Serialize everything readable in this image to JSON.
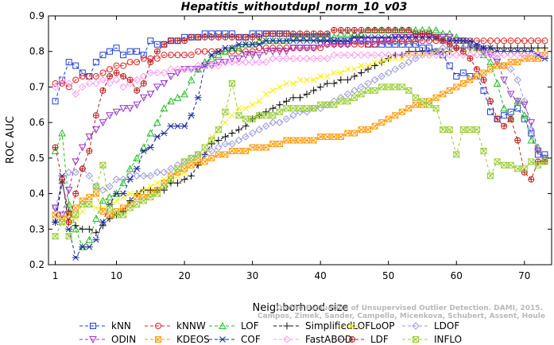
{
  "chart_data": {
    "type": "line",
    "title": "Hepatitis_withoutdupl_norm_10_v03",
    "xlabel": "Neighborhood size",
    "ylabel": "ROC AUC",
    "xlim": [
      0,
      74
    ],
    "ylim": [
      0.2,
      0.9
    ],
    "xticks": [
      1,
      10,
      20,
      30,
      40,
      50,
      60,
      70
    ],
    "yticks": [
      0.2,
      0.3,
      0.4,
      0.5,
      0.6,
      0.7,
      0.8,
      0.9
    ],
    "grid": false,
    "legend_position": "bottom",
    "credit_lines": [
      "Campos, Zimek, Sander, Campello, Micenkova, Schubert, Assent, Houle",
      "On the Evaluation of Unsupervised Outlier Detection. DAMI, 2015."
    ],
    "x": [
      1,
      2,
      3,
      4,
      5,
      6,
      7,
      8,
      9,
      10,
      11,
      12,
      13,
      14,
      15,
      16,
      17,
      18,
      19,
      20,
      21,
      22,
      23,
      24,
      25,
      26,
      27,
      28,
      29,
      30,
      31,
      32,
      33,
      34,
      35,
      36,
      37,
      38,
      39,
      40,
      41,
      42,
      43,
      44,
      45,
      46,
      47,
      48,
      49,
      50,
      51,
      52,
      53,
      54,
      55,
      56,
      57,
      58,
      59,
      60,
      61,
      62,
      63,
      64,
      65,
      66,
      67,
      68,
      69,
      70,
      71,
      72,
      73
    ],
    "series": [
      {
        "name": "kNN",
        "color": "#1f3fd6",
        "marker": "square",
        "dash": "4,3",
        "values": [
          0.66,
          0.72,
          0.77,
          0.76,
          0.74,
          0.73,
          0.77,
          0.79,
          0.8,
          0.81,
          0.79,
          0.8,
          0.8,
          0.79,
          0.83,
          0.82,
          0.82,
          0.83,
          0.83,
          0.84,
          0.84,
          0.84,
          0.85,
          0.85,
          0.85,
          0.85,
          0.85,
          0.84,
          0.84,
          0.85,
          0.85,
          0.85,
          0.85,
          0.85,
          0.85,
          0.84,
          0.84,
          0.84,
          0.84,
          0.84,
          0.84,
          0.83,
          0.83,
          0.83,
          0.83,
          0.83,
          0.82,
          0.82,
          0.82,
          0.82,
          0.82,
          0.82,
          0.82,
          0.82,
          0.81,
          0.81,
          0.8,
          0.79,
          0.76,
          0.73,
          0.74,
          0.73,
          0.73,
          0.69,
          0.63,
          0.61,
          0.62,
          0.63,
          0.64,
          0.61,
          0.57,
          0.51,
          0.51
        ]
      },
      {
        "name": "kNNW",
        "color": "#e02020",
        "marker": "circle",
        "dash": "4,3",
        "values": [
          0.71,
          0.71,
          0.7,
          0.72,
          0.73,
          0.73,
          0.73,
          0.74,
          0.75,
          0.76,
          0.76,
          0.77,
          0.77,
          0.78,
          0.78,
          0.78,
          0.79,
          0.79,
          0.79,
          0.79,
          0.79,
          0.8,
          0.8,
          0.8,
          0.8,
          0.8,
          0.8,
          0.8,
          0.8,
          0.8,
          0.81,
          0.81,
          0.81,
          0.81,
          0.81,
          0.81,
          0.81,
          0.81,
          0.81,
          0.81,
          0.82,
          0.82,
          0.82,
          0.82,
          0.82,
          0.82,
          0.82,
          0.82,
          0.83,
          0.83,
          0.83,
          0.83,
          0.83,
          0.83,
          0.83,
          0.83,
          0.83,
          0.83,
          0.83,
          0.83,
          0.83,
          0.83,
          0.83,
          0.83,
          0.83,
          0.83,
          0.83,
          0.83,
          0.83,
          0.83,
          0.83,
          0.83,
          0.83
        ]
      },
      {
        "name": "LOF",
        "color": "#22bb22",
        "marker": "triangle-up",
        "dash": "4,3",
        "values": [
          0.52,
          0.57,
          0.37,
          0.3,
          0.25,
          0.27,
          0.33,
          0.38,
          0.39,
          0.4,
          0.43,
          0.47,
          0.5,
          0.53,
          0.57,
          0.6,
          0.64,
          0.66,
          0.67,
          0.68,
          0.72,
          0.75,
          0.77,
          0.78,
          0.79,
          0.8,
          0.81,
          0.81,
          0.82,
          0.82,
          0.83,
          0.83,
          0.83,
          0.83,
          0.83,
          0.84,
          0.84,
          0.84,
          0.84,
          0.84,
          0.84,
          0.84,
          0.85,
          0.85,
          0.85,
          0.85,
          0.86,
          0.86,
          0.86,
          0.86,
          0.86,
          0.86,
          0.86,
          0.86,
          0.86,
          0.86,
          0.86,
          0.85,
          0.85,
          0.84,
          0.83,
          0.82,
          0.81,
          0.79,
          0.77,
          0.71,
          0.64,
          0.61,
          0.66,
          0.62,
          0.55,
          0.53,
          0.5
        ]
      },
      {
        "name": "SimplifiedLOF",
        "color": "#111111",
        "marker": "plus",
        "dash": "4,3",
        "values": [
          0.32,
          0.43,
          0.35,
          0.31,
          0.3,
          0.3,
          0.29,
          0.31,
          0.33,
          0.34,
          0.35,
          0.38,
          0.4,
          0.41,
          0.41,
          0.41,
          0.41,
          0.43,
          0.43,
          0.44,
          0.45,
          0.48,
          0.51,
          0.54,
          0.55,
          0.56,
          0.57,
          0.58,
          0.59,
          0.61,
          0.62,
          0.63,
          0.64,
          0.65,
          0.66,
          0.67,
          0.67,
          0.68,
          0.69,
          0.7,
          0.71,
          0.71,
          0.72,
          0.72,
          0.73,
          0.74,
          0.75,
          0.76,
          0.77,
          0.78,
          0.79,
          0.79,
          0.8,
          0.8,
          0.8,
          0.8,
          0.8,
          0.8,
          0.8,
          0.81,
          0.81,
          0.81,
          0.81,
          0.81,
          0.81,
          0.81,
          0.81,
          0.81,
          0.81,
          0.81,
          0.81,
          0.81,
          0.81
        ]
      },
      {
        "name": "LoOP",
        "color": "#ffee00",
        "marker": "x",
        "dash": "4,3",
        "values": [
          0.34,
          0.33,
          0.32,
          0.33,
          0.35,
          0.37,
          0.36,
          0.36,
          0.37,
          0.38,
          0.39,
          0.4,
          0.4,
          0.41,
          0.42,
          0.43,
          0.44,
          0.44,
          0.45,
          0.46,
          0.48,
          0.51,
          0.53,
          0.56,
          0.58,
          0.6,
          0.62,
          0.64,
          0.64,
          0.65,
          0.66,
          0.68,
          0.69,
          0.7,
          0.71,
          0.71,
          0.72,
          0.72,
          0.72,
          0.73,
          0.73,
          0.74,
          0.74,
          0.75,
          0.75,
          0.76,
          0.76,
          0.77,
          0.77,
          0.78,
          0.78,
          0.78,
          0.79,
          0.79,
          0.79,
          0.79,
          0.8,
          0.8,
          0.8,
          0.8,
          0.8,
          0.8,
          0.8,
          0.8,
          0.8,
          0.8,
          0.8,
          0.8,
          0.8,
          0.8,
          0.8,
          0.8,
          0.8
        ]
      },
      {
        "name": "LDOF",
        "color": "#9999dd",
        "marker": "diamond",
        "dash": "4,3",
        "values": [
          0.36,
          0.43,
          0.46,
          0.46,
          0.47,
          0.45,
          0.42,
          0.41,
          0.42,
          0.44,
          0.44,
          0.45,
          0.45,
          0.45,
          0.45,
          0.46,
          0.46,
          0.47,
          0.48,
          0.49,
          0.5,
          0.51,
          0.51,
          0.52,
          0.53,
          0.54,
          0.54,
          0.55,
          0.56,
          0.57,
          0.58,
          0.59,
          0.6,
          0.6,
          0.61,
          0.62,
          0.63,
          0.63,
          0.64,
          0.64,
          0.65,
          0.66,
          0.67,
          0.68,
          0.69,
          0.7,
          0.71,
          0.72,
          0.73,
          0.74,
          0.75,
          0.76,
          0.77,
          0.78,
          0.79,
          0.8,
          0.8,
          0.81,
          0.81,
          0.81,
          0.81,
          0.81,
          0.81,
          0.81,
          0.8,
          0.78,
          0.76,
          0.75,
          0.72,
          0.66,
          0.58,
          0.52,
          0.5
        ]
      },
      {
        "name": "ODIN",
        "color": "#9933cc",
        "marker": "triangle-down",
        "dash": "4,3",
        "values": [
          0.36,
          0.34,
          0.41,
          0.49,
          0.53,
          0.56,
          0.58,
          0.6,
          0.62,
          0.63,
          0.64,
          0.64,
          0.65,
          0.67,
          0.68,
          0.7,
          0.71,
          0.73,
          0.74,
          0.75,
          0.75,
          0.75,
          0.76,
          0.76,
          0.77,
          0.77,
          0.78,
          0.78,
          0.79,
          0.79,
          0.79,
          0.8,
          0.8,
          0.8,
          0.8,
          0.81,
          0.81,
          0.81,
          0.81,
          0.82,
          0.82,
          0.82,
          0.82,
          0.82,
          0.83,
          0.83,
          0.83,
          0.83,
          0.83,
          0.83,
          0.84,
          0.84,
          0.84,
          0.84,
          0.84,
          0.84,
          0.84,
          0.84,
          0.84,
          0.83,
          0.83,
          0.82,
          0.81,
          0.8,
          0.79,
          0.77,
          0.72,
          0.68,
          0.66,
          0.65,
          0.6,
          0.52,
          0.5
        ]
      },
      {
        "name": "KDEOS",
        "color": "#ff9900",
        "marker": "square-x",
        "dash": "4,3",
        "values": [
          0.34,
          0.33,
          0.34,
          0.36,
          0.38,
          0.39,
          0.4,
          0.35,
          0.34,
          0.35,
          0.36,
          0.37,
          0.39,
          0.39,
          0.4,
          0.41,
          0.43,
          0.45,
          0.46,
          0.47,
          0.48,
          0.49,
          0.49,
          0.5,
          0.51,
          0.51,
          0.52,
          0.52,
          0.52,
          0.53,
          0.53,
          0.53,
          0.54,
          0.54,
          0.55,
          0.55,
          0.55,
          0.55,
          0.55,
          0.56,
          0.56,
          0.56,
          0.56,
          0.57,
          0.57,
          0.58,
          0.58,
          0.59,
          0.6,
          0.61,
          0.62,
          0.63,
          0.64,
          0.65,
          0.65,
          0.66,
          0.67,
          0.68,
          0.69,
          0.7,
          0.71,
          0.72,
          0.73,
          0.74,
          0.75,
          0.76,
          0.76,
          0.77,
          0.77,
          0.78,
          0.78,
          0.78,
          0.79
        ]
      },
      {
        "name": "COF",
        "color": "#1a2a9a",
        "marker": "asterisk",
        "dash": "4,3",
        "values": [
          0.32,
          0.45,
          0.3,
          0.22,
          0.25,
          0.25,
          0.27,
          0.32,
          0.37,
          0.4,
          0.4,
          0.44,
          0.47,
          0.52,
          0.53,
          0.56,
          0.57,
          0.59,
          0.59,
          0.59,
          0.62,
          0.67,
          0.76,
          0.79,
          0.8,
          0.81,
          0.81,
          0.82,
          0.82,
          0.82,
          0.82,
          0.83,
          0.83,
          0.83,
          0.83,
          0.83,
          0.83,
          0.83,
          0.83,
          0.83,
          0.83,
          0.83,
          0.83,
          0.83,
          0.84,
          0.84,
          0.84,
          0.84,
          0.84,
          0.84,
          0.84,
          0.84,
          0.84,
          0.84,
          0.84,
          0.84,
          0.84,
          0.83,
          0.83,
          0.83,
          0.83,
          0.83,
          0.82,
          0.81,
          0.81,
          0.8,
          0.8,
          0.8,
          0.8,
          0.8,
          0.8,
          0.79,
          0.78
        ]
      },
      {
        "name": "FastABOD",
        "color": "#ff99ee",
        "marker": "diamond",
        "dash": "4,3",
        "values": [
          0.7,
          0.72,
          0.71,
          0.68,
          0.7,
          0.71,
          0.71,
          0.72,
          0.71,
          0.72,
          0.7,
          0.71,
          0.72,
          0.73,
          0.74,
          0.74,
          0.74,
          0.75,
          0.75,
          0.75,
          0.75,
          0.76,
          0.76,
          0.76,
          0.76,
          0.77,
          0.77,
          0.77,
          0.77,
          0.77,
          0.77,
          0.77,
          0.78,
          0.78,
          0.78,
          0.78,
          0.78,
          0.78,
          0.78,
          0.78,
          0.78,
          0.79,
          0.79,
          0.79,
          0.79,
          0.79,
          0.79,
          0.79,
          0.79,
          0.79,
          0.79,
          0.79,
          0.79,
          0.79,
          0.79,
          0.79,
          0.79,
          0.79,
          0.79,
          0.79,
          0.79,
          0.79,
          0.79,
          0.79,
          0.79,
          0.79,
          0.79,
          0.79,
          0.79,
          0.79,
          0.79,
          0.79,
          0.79
        ]
      },
      {
        "name": "LDF",
        "color": "#bb2222",
        "marker": "circle-plus",
        "dash": "4,3",
        "values": [
          0.53,
          0.44,
          0.32,
          0.4,
          0.47,
          0.52,
          0.62,
          0.69,
          0.73,
          0.74,
          0.73,
          0.72,
          0.69,
          0.71,
          0.77,
          0.8,
          0.82,
          0.83,
          0.83,
          0.83,
          0.84,
          0.84,
          0.84,
          0.84,
          0.84,
          0.84,
          0.84,
          0.84,
          0.84,
          0.84,
          0.84,
          0.85,
          0.85,
          0.85,
          0.85,
          0.85,
          0.85,
          0.85,
          0.85,
          0.85,
          0.85,
          0.86,
          0.86,
          0.86,
          0.86,
          0.86,
          0.86,
          0.86,
          0.86,
          0.86,
          0.86,
          0.86,
          0.86,
          0.85,
          0.85,
          0.85,
          0.84,
          0.83,
          0.82,
          0.81,
          0.8,
          0.78,
          0.75,
          0.72,
          0.66,
          0.61,
          0.59,
          0.61,
          0.55,
          0.46,
          0.44,
          0.49,
          0.49
        ]
      },
      {
        "name": "INFLO",
        "color": "#99cc33",
        "marker": "hourglass",
        "dash": "4,3",
        "values": [
          0.28,
          0.32,
          0.28,
          0.34,
          0.37,
          0.37,
          0.42,
          0.48,
          0.36,
          0.34,
          0.34,
          0.36,
          0.37,
          0.38,
          0.39,
          0.4,
          0.42,
          0.44,
          0.47,
          0.49,
          0.5,
          0.51,
          0.53,
          0.55,
          0.58,
          0.63,
          0.71,
          0.62,
          0.61,
          0.61,
          0.62,
          0.62,
          0.62,
          0.63,
          0.64,
          0.64,
          0.64,
          0.64,
          0.64,
          0.65,
          0.65,
          0.65,
          0.66,
          0.66,
          0.67,
          0.68,
          0.69,
          0.69,
          0.7,
          0.7,
          0.7,
          0.7,
          0.69,
          0.67,
          0.66,
          0.65,
          0.64,
          0.58,
          0.58,
          0.51,
          0.58,
          0.58,
          0.58,
          0.52,
          0.45,
          0.49,
          0.48,
          0.48,
          0.47,
          0.47,
          0.49,
          0.48,
          0.49
        ]
      }
    ]
  }
}
